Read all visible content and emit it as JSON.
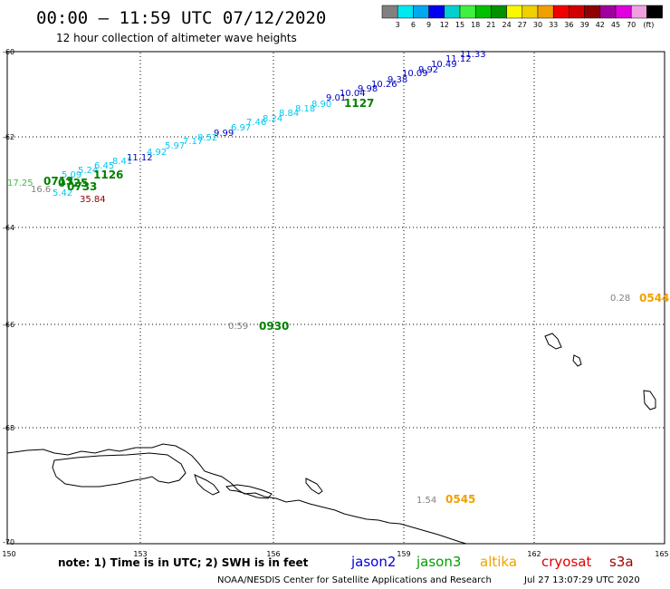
{
  "header": {
    "title": "00:00 – 11:59 UTC 07/12/2020",
    "subtitle": "12 hour collection of altimeter wave heights"
  },
  "legend": {
    "colors": [
      "#808080",
      "#00e8f0",
      "#00a8f0",
      "#0000f0",
      "#00d0d0",
      "#40f040",
      "#00c000",
      "#009000",
      "#f8f800",
      "#f0d000",
      "#f0a000",
      "#f00000",
      "#d00000",
      "#900000",
      "#a000a0",
      "#e000e0",
      "#f0a0e0",
      "#000000"
    ],
    "labels": [
      "3",
      "6",
      "9",
      "12",
      "15",
      "18",
      "21",
      "24",
      "27",
      "30",
      "33",
      "36",
      "39",
      "42",
      "45",
      "70"
    ],
    "unit": "(ft)"
  },
  "axes": {
    "lat_labels": [
      "-60",
      "-62",
      "-64",
      "-66",
      "-68",
      "-70"
    ],
    "lon_labels": [
      "150",
      "153",
      "156",
      "159",
      "162",
      "165"
    ]
  },
  "track_labels": [
    {
      "text": "17.25",
      "color": "#40c040"
    },
    {
      "text": "16.6",
      "color": "#808080"
    },
    {
      "text": "5.42",
      "color": "#00c8f0"
    },
    {
      "text": "5.09",
      "color": "#00c8f0"
    },
    {
      "text": "5.24",
      "color": "#00c8f0"
    },
    {
      "text": "6.45",
      "color": "#00c8f0"
    },
    {
      "text": "8.41",
      "color": "#00c8f0"
    },
    {
      "text": "11.12",
      "color": "#0000c0"
    },
    {
      "text": "4.92",
      "color": "#00c8f0"
    },
    {
      "text": "5.97",
      "color": "#00c8f0"
    },
    {
      "text": "7.17",
      "color": "#00c8f0"
    },
    {
      "text": "8.52",
      "color": "#00c8f0"
    },
    {
      "text": "9.99",
      "color": "#0000c0"
    },
    {
      "text": "6.97",
      "color": "#00c8f0"
    },
    {
      "text": "7.46",
      "color": "#00c8f0"
    },
    {
      "text": "8.24",
      "color": "#00c8f0"
    },
    {
      "text": "8.84",
      "color": "#00c8f0"
    },
    {
      "text": "8.18",
      "color": "#00c8f0"
    },
    {
      "text": "8.90",
      "color": "#00c8f0"
    },
    {
      "text": "9.01",
      "color": "#0000c0"
    },
    {
      "text": "10.04",
      "color": "#0000c0"
    },
    {
      "text": "9.98",
      "color": "#0000c0"
    },
    {
      "text": "10.26",
      "color": "#0000c0"
    },
    {
      "text": "9.38",
      "color": "#0000c0"
    },
    {
      "text": "10.09",
      "color": "#0000c0"
    },
    {
      "text": "9.92",
      "color": "#0000c0"
    },
    {
      "text": "10.49",
      "color": "#0000c0"
    },
    {
      "text": "11.12",
      "color": "#0000c0"
    },
    {
      "text": "11.33",
      "color": "#0000c0"
    },
    {
      "text": "35.84",
      "color": "#900000"
    },
    {
      "text": "0.59",
      "color": "#808080"
    },
    {
      "text": "0.28",
      "color": "#808080"
    },
    {
      "text": "1.54",
      "color": "#808080"
    }
  ],
  "pass_times": [
    {
      "text": "0713",
      "color": "#008000"
    },
    {
      "text": "0725",
      "color": "#008000"
    },
    {
      "text": "0733",
      "color": "#008000"
    },
    {
      "text": "1126",
      "color": "#008000"
    },
    {
      "text": "1127",
      "color": "#008000"
    },
    {
      "text": "0930",
      "color": "#008000"
    },
    {
      "text": "0544",
      "color": "#f0a000"
    },
    {
      "text": "0545",
      "color": "#f0a000"
    }
  ],
  "footer": {
    "note": "note: 1) Time is in UTC; 2) SWH is in feet",
    "missions": [
      {
        "name": "jason2",
        "color": "#0000e0"
      },
      {
        "name": "jason3",
        "color": "#00a000"
      },
      {
        "name": "altika",
        "color": "#f0a000"
      },
      {
        "name": "cryosat",
        "color": "#e00000"
      },
      {
        "name": "s3a",
        "color": "#a00000"
      }
    ],
    "credit": "NOAA/NESDIS Center for Satellite Applications and Research",
    "timestamp": "Jul 27 13:07:29 UTC 2020"
  }
}
